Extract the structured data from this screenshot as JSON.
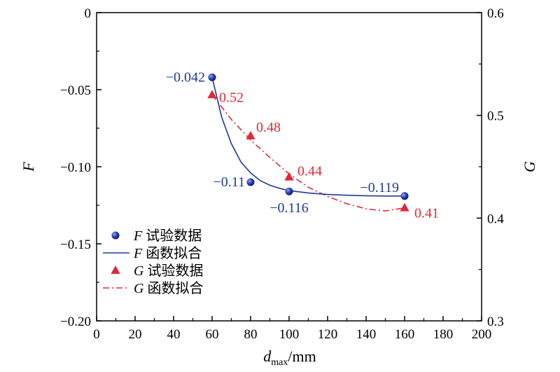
{
  "chart_data": {
    "type": "scatter",
    "xlabel_main": "d",
    "xlabel_sub": "max",
    "xlabel_unit": "/mm",
    "ylabel_left": "F",
    "ylabel_right": "G",
    "xlim": [
      0,
      200
    ],
    "ylim_left": [
      -0.2,
      0
    ],
    "ylim_right": [
      0.3,
      0.6
    ],
    "x_ticks": [
      "0",
      "20",
      "40",
      "60",
      "80",
      "100",
      "120",
      "140",
      "160",
      "180",
      "200"
    ],
    "y_left_ticks": [
      "0",
      "−0.05",
      "−0.10",
      "−0.15",
      "−0.20"
    ],
    "y_right_ticks": [
      "0.6",
      "0.5",
      "0.4",
      "0.3"
    ],
    "series": [
      {
        "name": "F 试验数据",
        "axis": "left",
        "marker": "circle",
        "color": "#1f3a99",
        "x": [
          60,
          80,
          100,
          160
        ],
        "y": [
          -0.042,
          -0.11,
          -0.116,
          -0.119
        ],
        "labels": [
          "−0.042",
          "−0.11",
          "−0.116",
          "−0.119"
        ]
      },
      {
        "name": "F 函数拟合",
        "axis": "left",
        "line": "solid",
        "color": "#1f3a99",
        "x": [
          60,
          65,
          70,
          75,
          80,
          85,
          90,
          95,
          100,
          110,
          120,
          130,
          140,
          150,
          160
        ],
        "y": [
          -0.042,
          -0.068,
          -0.085,
          -0.097,
          -0.104,
          -0.109,
          -0.112,
          -0.114,
          -0.1155,
          -0.117,
          -0.118,
          -0.1185,
          -0.1188,
          -0.119,
          -0.119
        ]
      },
      {
        "name": "G 试验数据",
        "axis": "right",
        "marker": "triangle",
        "color": "#e0283a",
        "x": [
          60,
          80,
          100,
          160
        ],
        "y": [
          0.52,
          0.48,
          0.44,
          0.41
        ],
        "labels": [
          "0.52",
          "0.48",
          "0.44",
          "0.41"
        ]
      },
      {
        "name": "G 函数拟合",
        "axis": "right",
        "line": "dashdot",
        "color": "#e0283a",
        "x": [
          60,
          70,
          80,
          90,
          100,
          110,
          120,
          130,
          140,
          150,
          160
        ],
        "y": [
          0.52,
          0.496,
          0.476,
          0.459,
          0.443,
          0.43,
          0.421,
          0.414,
          0.409,
          0.407,
          0.41
        ]
      }
    ],
    "legend_position": "bottom-left",
    "grid": false
  }
}
